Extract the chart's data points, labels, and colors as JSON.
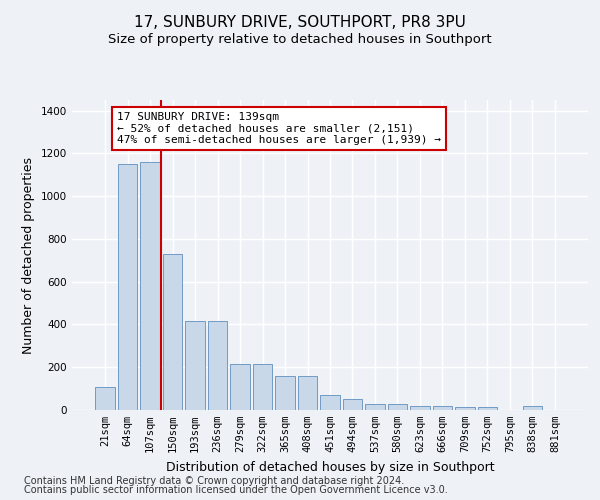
{
  "title": "17, SUNBURY DRIVE, SOUTHPORT, PR8 3PU",
  "subtitle": "Size of property relative to detached houses in Southport",
  "xlabel": "Distribution of detached houses by size in Southport",
  "ylabel": "Number of detached properties",
  "categories": [
    "21sqm",
    "64sqm",
    "107sqm",
    "150sqm",
    "193sqm",
    "236sqm",
    "279sqm",
    "322sqm",
    "365sqm",
    "408sqm",
    "451sqm",
    "494sqm",
    "537sqm",
    "580sqm",
    "623sqm",
    "666sqm",
    "709sqm",
    "752sqm",
    "795sqm",
    "838sqm",
    "881sqm"
  ],
  "values": [
    107,
    1150,
    1160,
    730,
    415,
    415,
    215,
    215,
    160,
    160,
    70,
    50,
    30,
    30,
    17,
    17,
    15,
    15,
    0,
    20,
    0
  ],
  "bar_color": "#c8d8e8",
  "bar_edgecolor": "#6090c0",
  "red_line_x": 2.5,
  "annotation_text": "17 SUNBURY DRIVE: 139sqm\n← 52% of detached houses are smaller (2,151)\n47% of semi-detached houses are larger (1,939) →",
  "annotation_box_color": "#ffffff",
  "annotation_border_color": "#cc0000",
  "footer_line1": "Contains HM Land Registry data © Crown copyright and database right 2024.",
  "footer_line2": "Contains public sector information licensed under the Open Government Licence v3.0.",
  "ylim": [
    0,
    1450
  ],
  "yticks": [
    0,
    200,
    400,
    600,
    800,
    1000,
    1200,
    1400
  ],
  "background_color": "#eef2f7",
  "grid_color": "#ffffff",
  "title_fontsize": 11,
  "subtitle_fontsize": 9.5,
  "tick_fontsize": 7.5,
  "label_fontsize": 9,
  "footer_fontsize": 7,
  "annot_fontsize": 8
}
